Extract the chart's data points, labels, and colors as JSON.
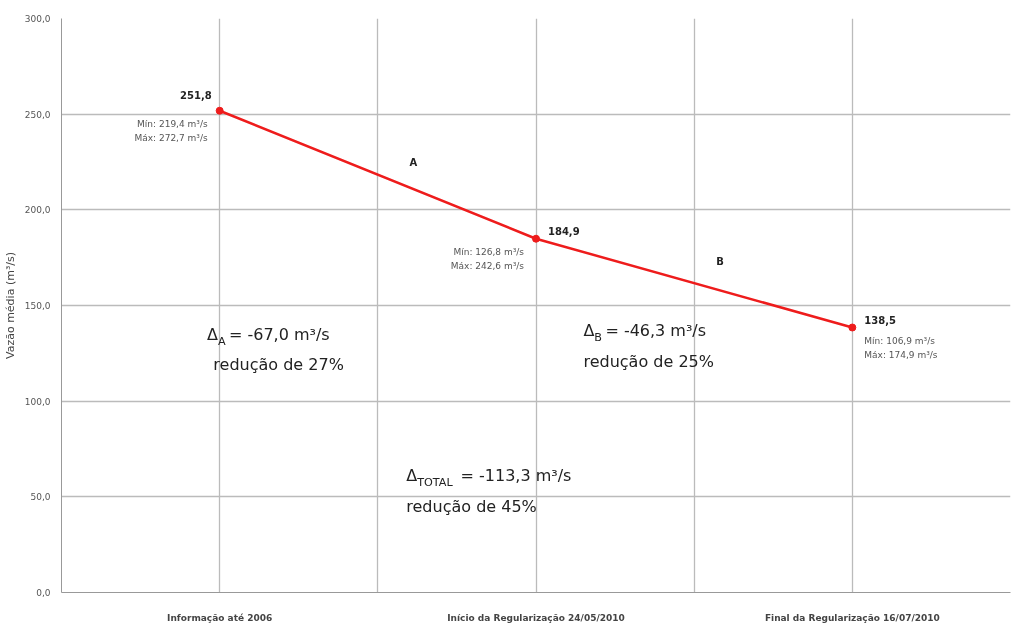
{
  "chart_data": {
    "type": "line",
    "ylabel": "Vazão média (m³/s)",
    "categories": [
      "Informação até 2006",
      "Início da Regularização 24/05/2010",
      "Final da Regularização 16/07/2010"
    ],
    "series": [
      {
        "color": "#ee1c1c",
        "values": [
          251.8,
          184.9,
          138.5
        ]
      }
    ],
    "value_labels": [
      "251,8",
      "184,9",
      "138,5"
    ],
    "marker": "circle",
    "line_style": "solid",
    "grid": true,
    "ylim": [
      0,
      300
    ],
    "yticks": [
      {
        "value": 0,
        "label": "0,0"
      },
      {
        "value": 50,
        "label": "50,0"
      },
      {
        "value": 100,
        "label": "100,0"
      },
      {
        "value": 150,
        "label": "150,0"
      },
      {
        "value": 200,
        "label": "200,0"
      },
      {
        "value": 250,
        "label": "250,0"
      },
      {
        "value": 300,
        "label": "300,0"
      }
    ],
    "annotations": [
      {
        "text": "Mín: 219,4 m³/s",
        "x": "Informação até 2006",
        "y": 251.8
      },
      {
        "text": "Máx: 272,7 m³/s",
        "x": "Informação até 2006",
        "y": 251.8
      },
      {
        "text": "Mín: 126,8 m³/s",
        "x": "Início da Regularização 24/05/2010",
        "y": 184.9
      },
      {
        "text": "Máx: 242,6 m³/s",
        "x": "Início da Regularização 24/05/2010",
        "y": 184.9
      },
      {
        "text": "Mín: 106,9 m³/s",
        "x": "Final da Regularização 16/07/2010",
        "y": 138.5
      },
      {
        "text": "Máx: 174,9 m³/s",
        "x": "Final da Regularização 16/07/2010",
        "y": 138.5
      },
      "A",
      "B",
      "Δ$_{A}$ = -67,0 m³/s",
      "redução de 27%",
      "Δ$_{B}$ = -46,3 m³/s",
      "redução de 25%",
      "Δ$_{TOTAL}$ = -113,3 m³/s",
      "redução de 45%"
    ]
  }
}
